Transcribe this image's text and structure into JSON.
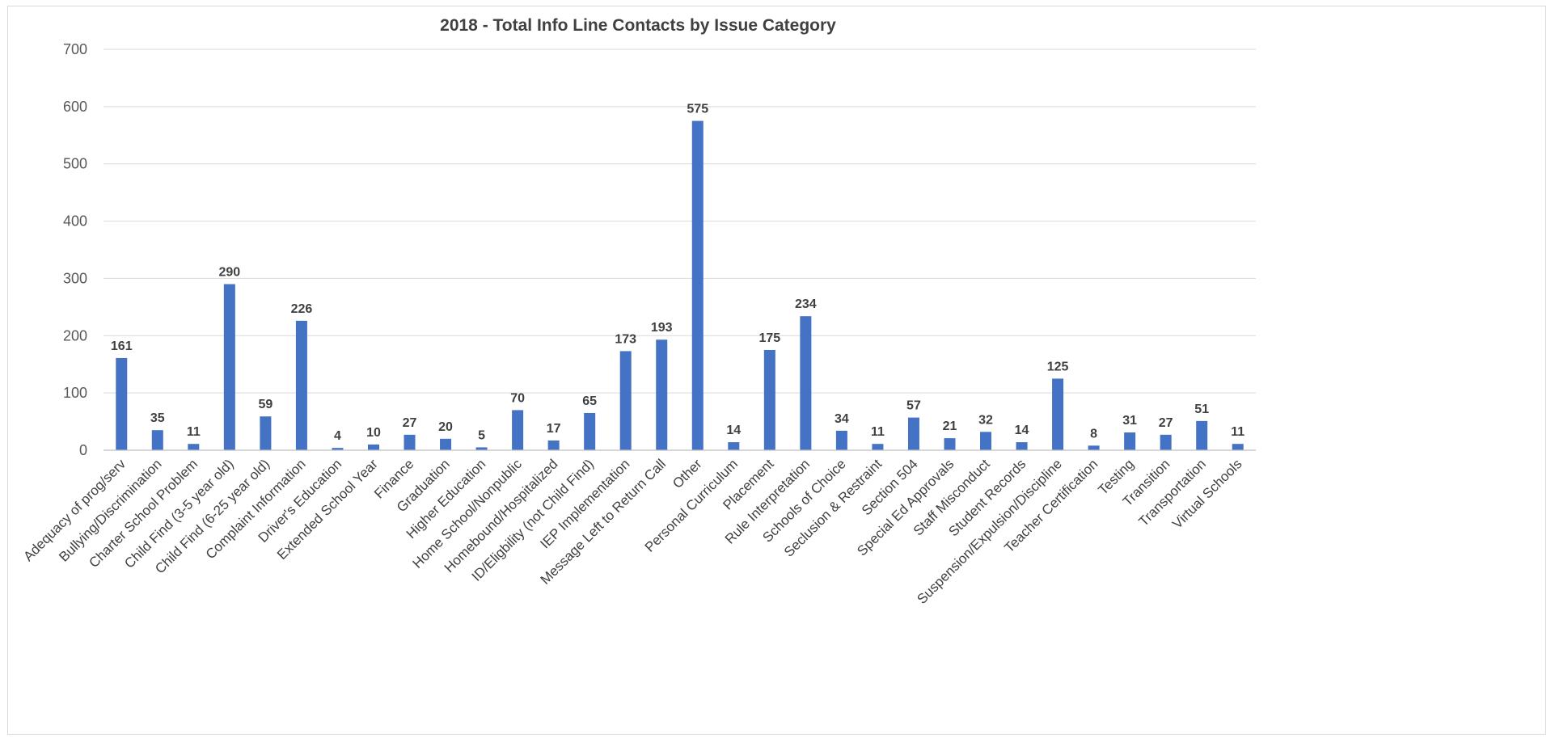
{
  "chart_data": {
    "type": "bar",
    "title": "2018 - Total Info Line Contacts by Issue Category",
    "xlabel": "",
    "ylabel": "",
    "ylim": [
      0,
      700
    ],
    "yticks": [
      0,
      100,
      200,
      300,
      400,
      500,
      600,
      700
    ],
    "grid": true,
    "legend": "none",
    "bar_color": "#4472c4",
    "categories": [
      "Adequacy of prog/serv",
      "Bullying/Discrimination",
      "Charter School Problem",
      "Child Find (3-5 year old)",
      "Child Find (6-25 year old)",
      "Complaint Information",
      "Driver's Education",
      "Extended School Year",
      "Finance",
      "Graduation",
      "Higher Education",
      "Home School/Nonpublic",
      "Homebound/Hospitalized",
      "ID/Eligbility (not Child Find)",
      "IEP Implementation",
      "Message Left to Return Call",
      "Other",
      "Personal Curriculum",
      "Placement",
      "Rule Interpretation",
      "Schools of Choice",
      "Seclusion & Restraint",
      "Section 504",
      "Special Ed Approvals",
      "Staff Misconduct",
      "Student Records",
      "Suspension/Expulsion/Discipline",
      "Teacher Certification",
      "Testing",
      "Transition",
      "Transportation",
      "Virtual Schools"
    ],
    "values": [
      161,
      35,
      11,
      290,
      59,
      226,
      4,
      10,
      27,
      20,
      5,
      70,
      17,
      65,
      173,
      193,
      575,
      14,
      175,
      234,
      34,
      11,
      57,
      21,
      32,
      14,
      125,
      8,
      31,
      27,
      51,
      11
    ]
  }
}
